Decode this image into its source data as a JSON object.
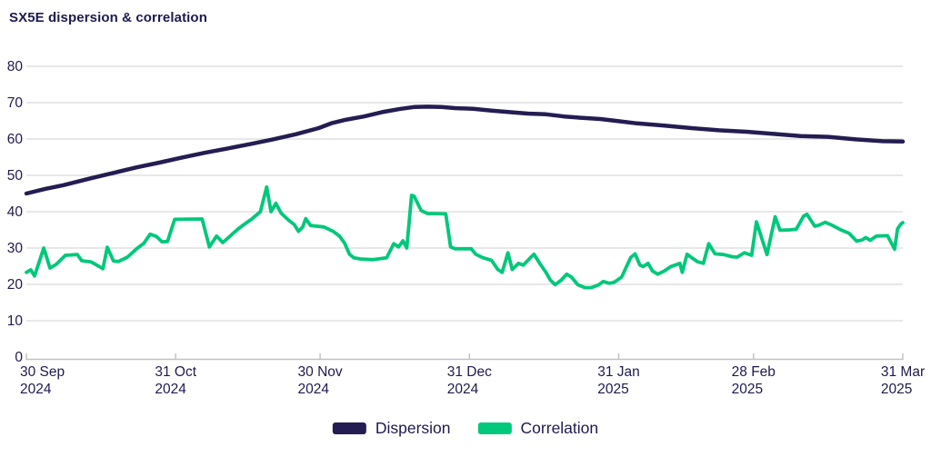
{
  "title": "SX5E dispersion & correlation",
  "colors": {
    "dispersion": "#231d52",
    "correlation": "#00c87a",
    "text": "#1e1a4e",
    "grid": "#d9d9d9",
    "axis": "#c2c2c2",
    "background": "#ffffff"
  },
  "legend": [
    {
      "label": "Dispersion",
      "color_key": "dispersion"
    },
    {
      "label": "Correlation",
      "color_key": "correlation"
    }
  ],
  "chart_data": {
    "type": "line",
    "title": "SX5E dispersion & correlation",
    "xlabel": "",
    "ylabel": "",
    "x_unit": "days since 30 Sep 2024",
    "xlim": [
      0,
      182
    ],
    "ylim": [
      0,
      80
    ],
    "y_ticks": [
      0,
      10,
      20,
      30,
      40,
      50,
      60,
      70,
      80
    ],
    "x_ticks": [
      {
        "day": 0,
        "line1": "30 Sep",
        "line2": "2024"
      },
      {
        "day": 31,
        "line1": "31 Oct",
        "line2": "2024"
      },
      {
        "day": 61,
        "line1": "30 Nov",
        "line2": "2024"
      },
      {
        "day": 92,
        "line1": "31 Dec",
        "line2": "2024"
      },
      {
        "day": 123,
        "line1": "31 Jan",
        "line2": "2025"
      },
      {
        "day": 151,
        "line1": "28 Feb",
        "line2": "2025"
      },
      {
        "day": 182,
        "line1": "31 Mar",
        "line2": "2025"
      }
    ],
    "grid": "horizontal",
    "legend_position": "bottom",
    "series": [
      {
        "name": "Dispersion",
        "color_key": "dispersion",
        "points": [
          [
            0,
            45.0
          ],
          [
            4,
            46.3
          ],
          [
            7.7,
            47.3
          ],
          [
            13.4,
            49.2
          ],
          [
            19.1,
            51.0
          ],
          [
            22.9,
            52.2
          ],
          [
            27.6,
            53.5
          ],
          [
            32.3,
            54.9
          ],
          [
            37.0,
            56.2
          ],
          [
            41.8,
            57.4
          ],
          [
            46.5,
            58.6
          ],
          [
            51.2,
            59.9
          ],
          [
            55.9,
            61.3
          ],
          [
            60.7,
            63.0
          ],
          [
            63.5,
            64.4
          ],
          [
            66.3,
            65.3
          ],
          [
            70.1,
            66.2
          ],
          [
            73.9,
            67.4
          ],
          [
            77.7,
            68.3
          ],
          [
            80.5,
            68.8
          ],
          [
            83.3,
            68.9
          ],
          [
            86.2,
            68.8
          ],
          [
            89.0,
            68.5
          ],
          [
            92.8,
            68.3
          ],
          [
            96.6,
            67.8
          ],
          [
            100.3,
            67.4
          ],
          [
            104.1,
            67.0
          ],
          [
            107.9,
            66.8
          ],
          [
            111.7,
            66.2
          ],
          [
            115.5,
            65.8
          ],
          [
            119.2,
            65.5
          ],
          [
            123.0,
            64.9
          ],
          [
            126.8,
            64.3
          ],
          [
            132.5,
            63.7
          ],
          [
            138.1,
            63.0
          ],
          [
            143.8,
            62.4
          ],
          [
            149.5,
            62.0
          ],
          [
            155.2,
            61.4
          ],
          [
            160.8,
            60.8
          ],
          [
            166.5,
            60.6
          ],
          [
            172.2,
            59.9
          ],
          [
            177.8,
            59.4
          ],
          [
            182,
            59.3
          ]
        ]
      },
      {
        "name": "Correlation",
        "color_key": "correlation",
        "points": [
          [
            0,
            23.3
          ],
          [
            0.9,
            24.0
          ],
          [
            1.7,
            22.3
          ],
          [
            3.6,
            30.0
          ],
          [
            4.9,
            24.5
          ],
          [
            6.2,
            25.5
          ],
          [
            8.1,
            28.0
          ],
          [
            10.6,
            28.2
          ],
          [
            11.5,
            26.5
          ],
          [
            13.4,
            26.2
          ],
          [
            15.3,
            24.8
          ],
          [
            15.9,
            24.3
          ],
          [
            16.8,
            30.2
          ],
          [
            18.1,
            26.4
          ],
          [
            19.1,
            26.3
          ],
          [
            21.0,
            27.5
          ],
          [
            22.9,
            29.8
          ],
          [
            24.4,
            31.3
          ],
          [
            25.7,
            33.8
          ],
          [
            27.0,
            33.2
          ],
          [
            28.2,
            31.7
          ],
          [
            29.3,
            31.8
          ],
          [
            30.8,
            37.9
          ],
          [
            36.5,
            38.0
          ],
          [
            38.0,
            30.3
          ],
          [
            39.5,
            33.3
          ],
          [
            40.8,
            31.5
          ],
          [
            42.9,
            34.0
          ],
          [
            44.0,
            35.3
          ],
          [
            45.0,
            36.3
          ],
          [
            46.7,
            37.9
          ],
          [
            48.6,
            40.0
          ],
          [
            49.9,
            46.8
          ],
          [
            50.8,
            40.0
          ],
          [
            51.8,
            42.3
          ],
          [
            52.9,
            39.6
          ],
          [
            54.6,
            37.5
          ],
          [
            55.6,
            36.5
          ],
          [
            56.5,
            34.6
          ],
          [
            57.4,
            35.8
          ],
          [
            58.0,
            38.1
          ],
          [
            59.0,
            36.2
          ],
          [
            61.8,
            35.8
          ],
          [
            63.7,
            34.6
          ],
          [
            65.0,
            33.3
          ],
          [
            66.1,
            31.3
          ],
          [
            67.1,
            28.3
          ],
          [
            68.0,
            27.3
          ],
          [
            69.3,
            27.0
          ],
          [
            72.0,
            26.8
          ],
          [
            74.8,
            27.3
          ],
          [
            76.3,
            31.2
          ],
          [
            77.3,
            30.3
          ],
          [
            78.2,
            32.0
          ],
          [
            79.0,
            30.0
          ],
          [
            80.0,
            44.5
          ],
          [
            80.5,
            44.3
          ],
          [
            82.0,
            40.3
          ],
          [
            83.3,
            39.5
          ],
          [
            87.1,
            39.4
          ],
          [
            88.1,
            30.3
          ],
          [
            89.0,
            29.8
          ],
          [
            92.4,
            29.8
          ],
          [
            93.3,
            28.3
          ],
          [
            94.7,
            27.4
          ],
          [
            96.6,
            26.6
          ],
          [
            97.9,
            24.1
          ],
          [
            98.8,
            23.3
          ],
          [
            100.0,
            28.7
          ],
          [
            100.9,
            24.1
          ],
          [
            102.2,
            25.8
          ],
          [
            103.2,
            25.3
          ],
          [
            104.7,
            27.4
          ],
          [
            105.4,
            28.3
          ],
          [
            106.6,
            25.8
          ],
          [
            107.9,
            23.3
          ],
          [
            108.8,
            21.2
          ],
          [
            109.8,
            19.9
          ],
          [
            111.1,
            21.2
          ],
          [
            112.2,
            22.8
          ],
          [
            113.2,
            22.0
          ],
          [
            114.5,
            19.9
          ],
          [
            116.0,
            19.1
          ],
          [
            117.3,
            19.1
          ],
          [
            118.9,
            19.9
          ],
          [
            119.8,
            20.8
          ],
          [
            121.1,
            20.3
          ],
          [
            122.1,
            20.6
          ],
          [
            123.6,
            22.0
          ],
          [
            125.5,
            27.4
          ],
          [
            126.4,
            28.4
          ],
          [
            127.4,
            25.3
          ],
          [
            128.1,
            24.9
          ],
          [
            129.1,
            25.8
          ],
          [
            130.0,
            23.7
          ],
          [
            131.1,
            22.8
          ],
          [
            132.5,
            23.7
          ],
          [
            133.8,
            24.9
          ],
          [
            134.7,
            25.3
          ],
          [
            135.7,
            25.8
          ],
          [
            136.2,
            23.3
          ],
          [
            137.2,
            28.3
          ],
          [
            138.1,
            27.4
          ],
          [
            139.4,
            26.2
          ],
          [
            140.6,
            25.8
          ],
          [
            141.7,
            31.2
          ],
          [
            143.0,
            28.4
          ],
          [
            144.8,
            28.2
          ],
          [
            146.6,
            27.6
          ],
          [
            147.6,
            27.5
          ],
          [
            149.1,
            28.7
          ],
          [
            150.6,
            28.0
          ],
          [
            151.6,
            37.2
          ],
          [
            153.8,
            28.2
          ],
          [
            155.5,
            38.6
          ],
          [
            156.5,
            34.9
          ],
          [
            158.6,
            35.0
          ],
          [
            159.9,
            35.2
          ],
          [
            161.4,
            38.8
          ],
          [
            162.1,
            39.3
          ],
          [
            163.7,
            36.0
          ],
          [
            164.6,
            36.3
          ],
          [
            165.9,
            37.1
          ],
          [
            167.4,
            36.2
          ],
          [
            169.3,
            34.9
          ],
          [
            170.8,
            34.1
          ],
          [
            172.4,
            31.9
          ],
          [
            173.5,
            32.2
          ],
          [
            174.3,
            32.9
          ],
          [
            175.2,
            32.1
          ],
          [
            176.5,
            33.3
          ],
          [
            178.8,
            33.4
          ],
          [
            180.3,
            29.7
          ],
          [
            180.9,
            35.3
          ],
          [
            181.6,
            36.6
          ],
          [
            182,
            37.0
          ]
        ]
      }
    ]
  }
}
